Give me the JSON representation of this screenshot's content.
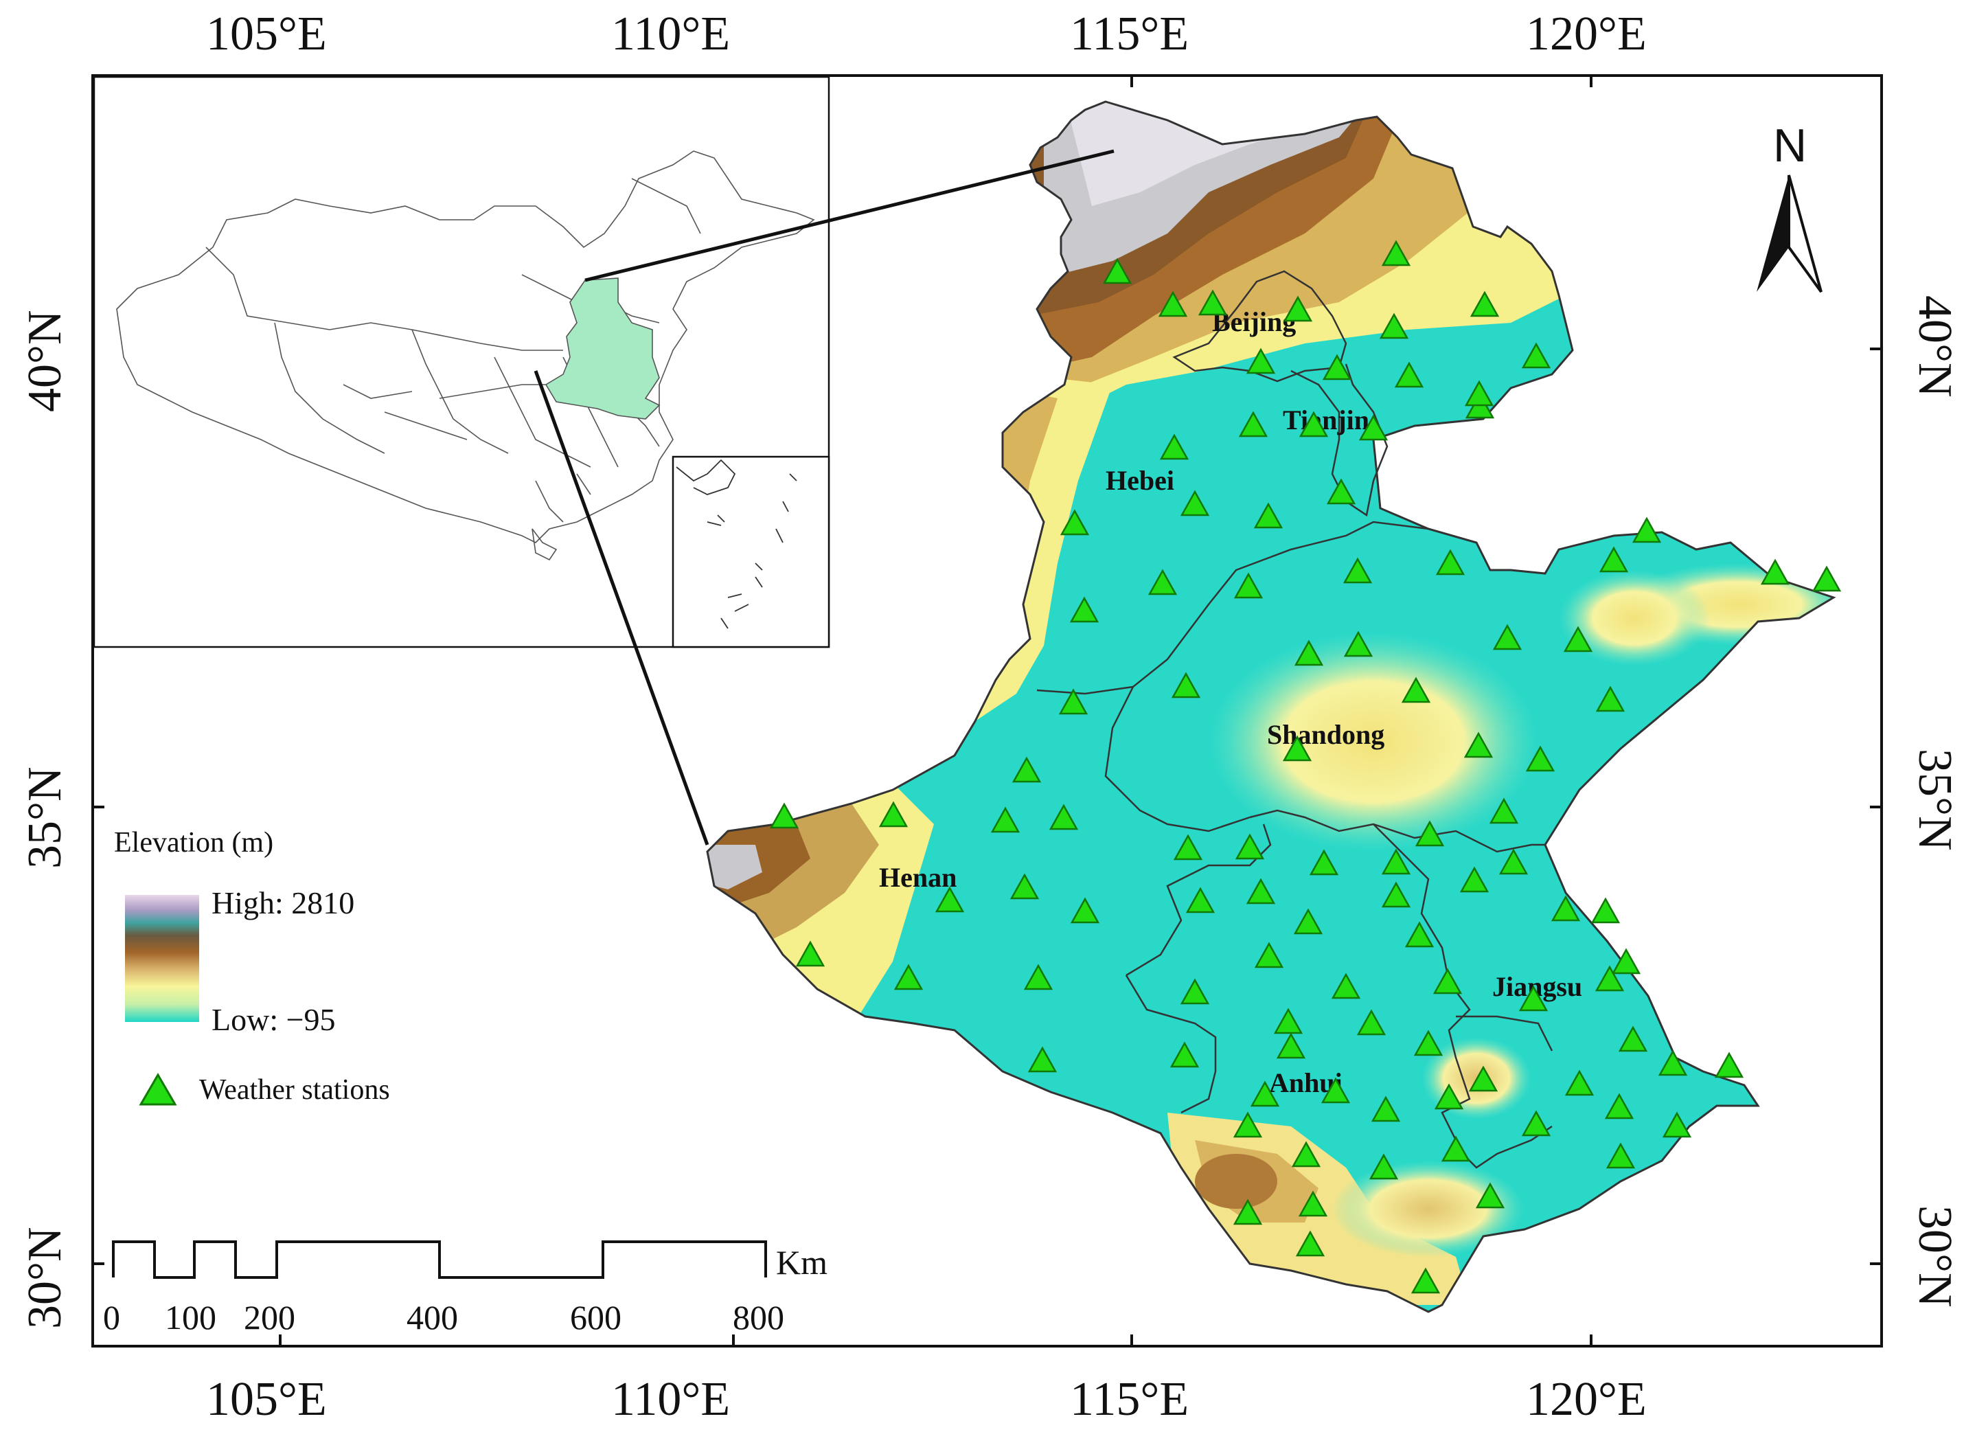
{
  "axes": {
    "lon_labels": [
      "105°E",
      "110°E",
      "115°E",
      "120°E"
    ],
    "lat_labels": [
      "40°N",
      "35°N",
      "30°N"
    ]
  },
  "provinces": [
    {
      "name": "Beijing"
    },
    {
      "name": "Tianjin"
    },
    {
      "name": "Hebei"
    },
    {
      "name": "Shandong"
    },
    {
      "name": "Henan"
    },
    {
      "name": "Jiangsu"
    },
    {
      "name": "Anhui"
    }
  ],
  "legend": {
    "title": "Elevation (m)",
    "high_label": "High: 2810",
    "low_label": "Low: −95",
    "stations_label": "Weather stations"
  },
  "scale_bar": {
    "ticks": [
      "0",
      "100",
      "200",
      "400",
      "600",
      "800"
    ],
    "unit": "Km"
  },
  "north_arrow": {
    "label": "N"
  },
  "colors": {
    "station_fill": "#22dd11",
    "lowland": "#1fd6c6",
    "plain": "#7fe6c0",
    "foothill": "#f5f08a",
    "hill": "#dcb65a",
    "mountain": "#a06a2c",
    "high": "#c8c8cc",
    "inset_highlight": "#9fe8c0"
  }
}
